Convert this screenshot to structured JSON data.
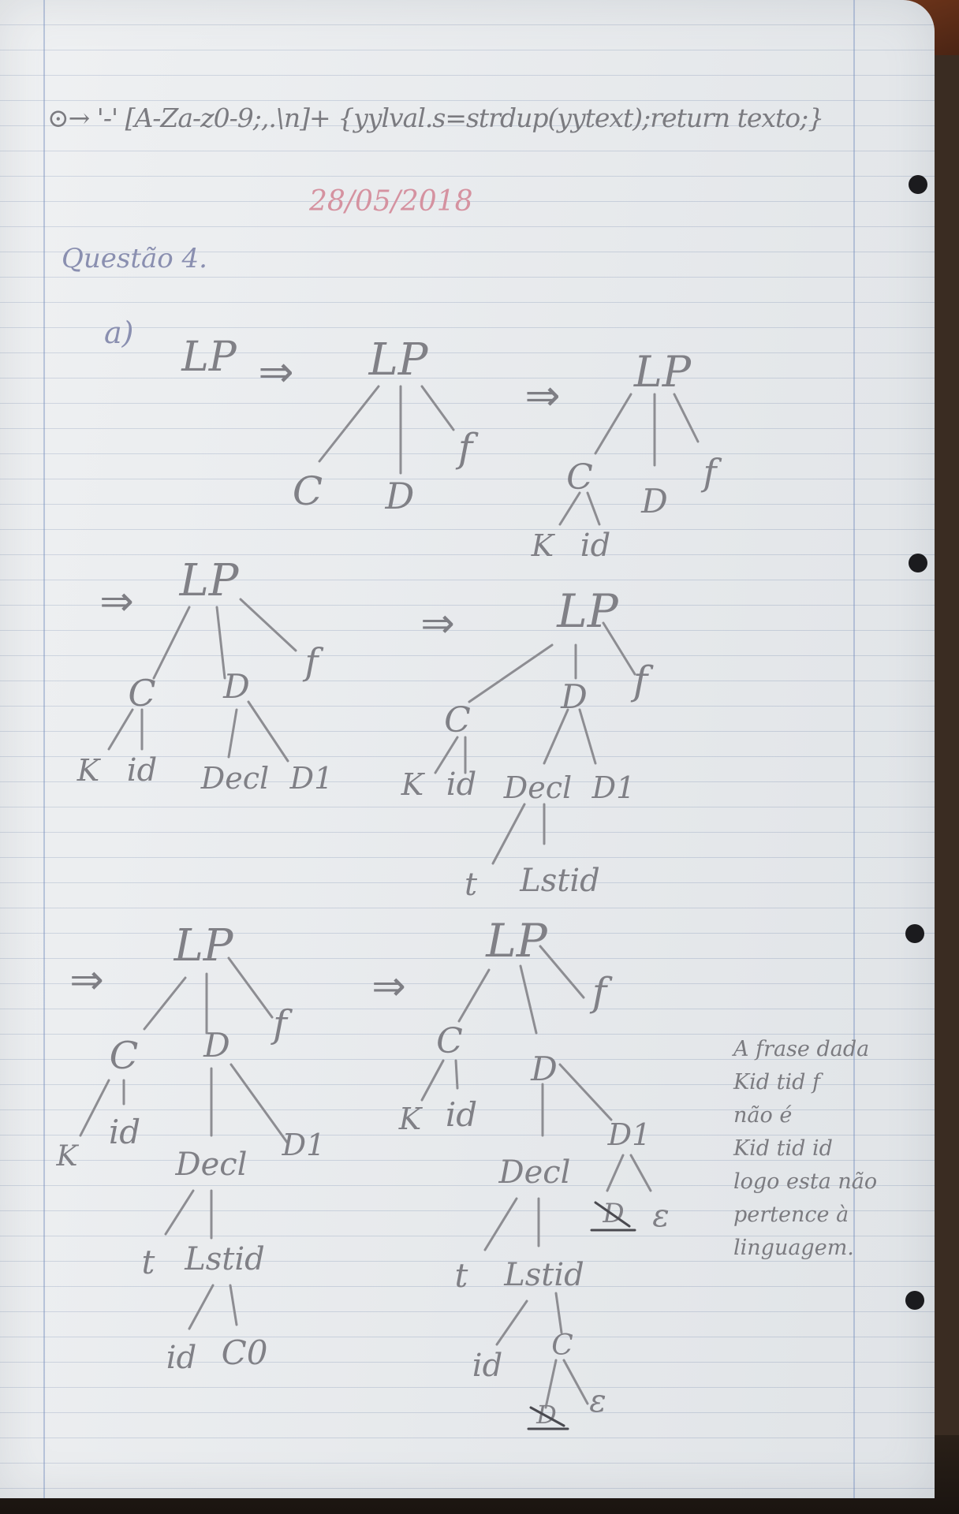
{
  "header": {
    "code_line": "⊙→ '-' [A-Za-z0-9;,.\\n]+ {yylval.s=strdup(yytext);return texto;}",
    "date": "28/05/2018"
  },
  "question": {
    "heading": "Questão 4.",
    "part": "a)"
  },
  "derivation": {
    "arrow": "⇒",
    "labels": {
      "LP": "LP",
      "C": "C",
      "D": "D",
      "f": "f",
      "K": "K",
      "id": "id",
      "Decl": "Decl",
      "D1": "D1",
      "t": "t",
      "Lstid": "Lstid",
      "C0": "C0",
      "epsilon": "ε",
      "struck": "D"
    }
  },
  "note": {
    "lines": [
      "A frase dada",
      "Kid tid f",
      "não é",
      "Kid tid id",
      "logo esta não",
      "pertence à",
      "linguagem."
    ]
  }
}
